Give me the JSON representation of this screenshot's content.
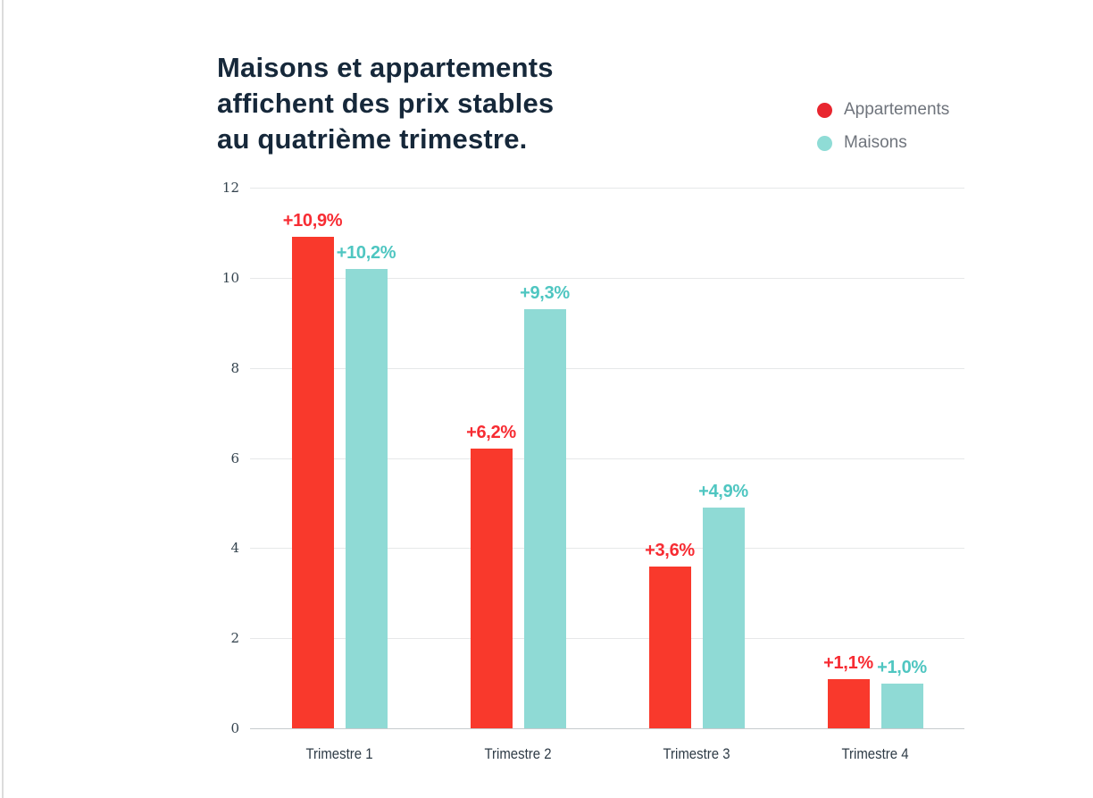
{
  "header": {
    "title": "Maisons et appartements\naffichent des prix stables\nau quatrième trimestre.",
    "title_color": "#16283a"
  },
  "legend": {
    "items": [
      {
        "label": "Appartements",
        "color": "#e8262f"
      },
      {
        "label": "Maisons",
        "color": "#8fdcd6"
      }
    ],
    "text_color": "#6f747c",
    "position": "top-right"
  },
  "chart_data": {
    "type": "bar",
    "title": "Maisons et appartements affichent des prix stables au quatrième trimestre.",
    "categories": [
      "Trimestre 1",
      "Trimestre 2",
      "Trimestre 3",
      "Trimestre 4"
    ],
    "series": [
      {
        "name": "Appartements",
        "color": "#f9392c",
        "label_color": "#f72c33",
        "values": [
          10.9,
          6.2,
          3.6,
          1.1
        ],
        "labels": [
          "+10,9%",
          "+6,2%",
          "+3,6%",
          "+1,1%"
        ]
      },
      {
        "name": "Maisons",
        "color": "#8fdad5",
        "label_color": "#4fc6c1",
        "values": [
          10.2,
          9.3,
          4.9,
          1.0
        ],
        "labels": [
          "+10,2%",
          "+9,3%",
          "+4,9%",
          "+1,0%"
        ]
      }
    ],
    "xlabel": "",
    "ylabel": "",
    "ylim": [
      0,
      12
    ],
    "yticks": [
      0,
      2,
      4,
      6,
      8,
      10,
      12
    ],
    "grid": true,
    "legend_position": "top-right",
    "gridline_color": "#e6e8e9",
    "baseline_color": "#c6cbce",
    "tick_color": "#33424d",
    "category_color": "#2e3b46"
  }
}
